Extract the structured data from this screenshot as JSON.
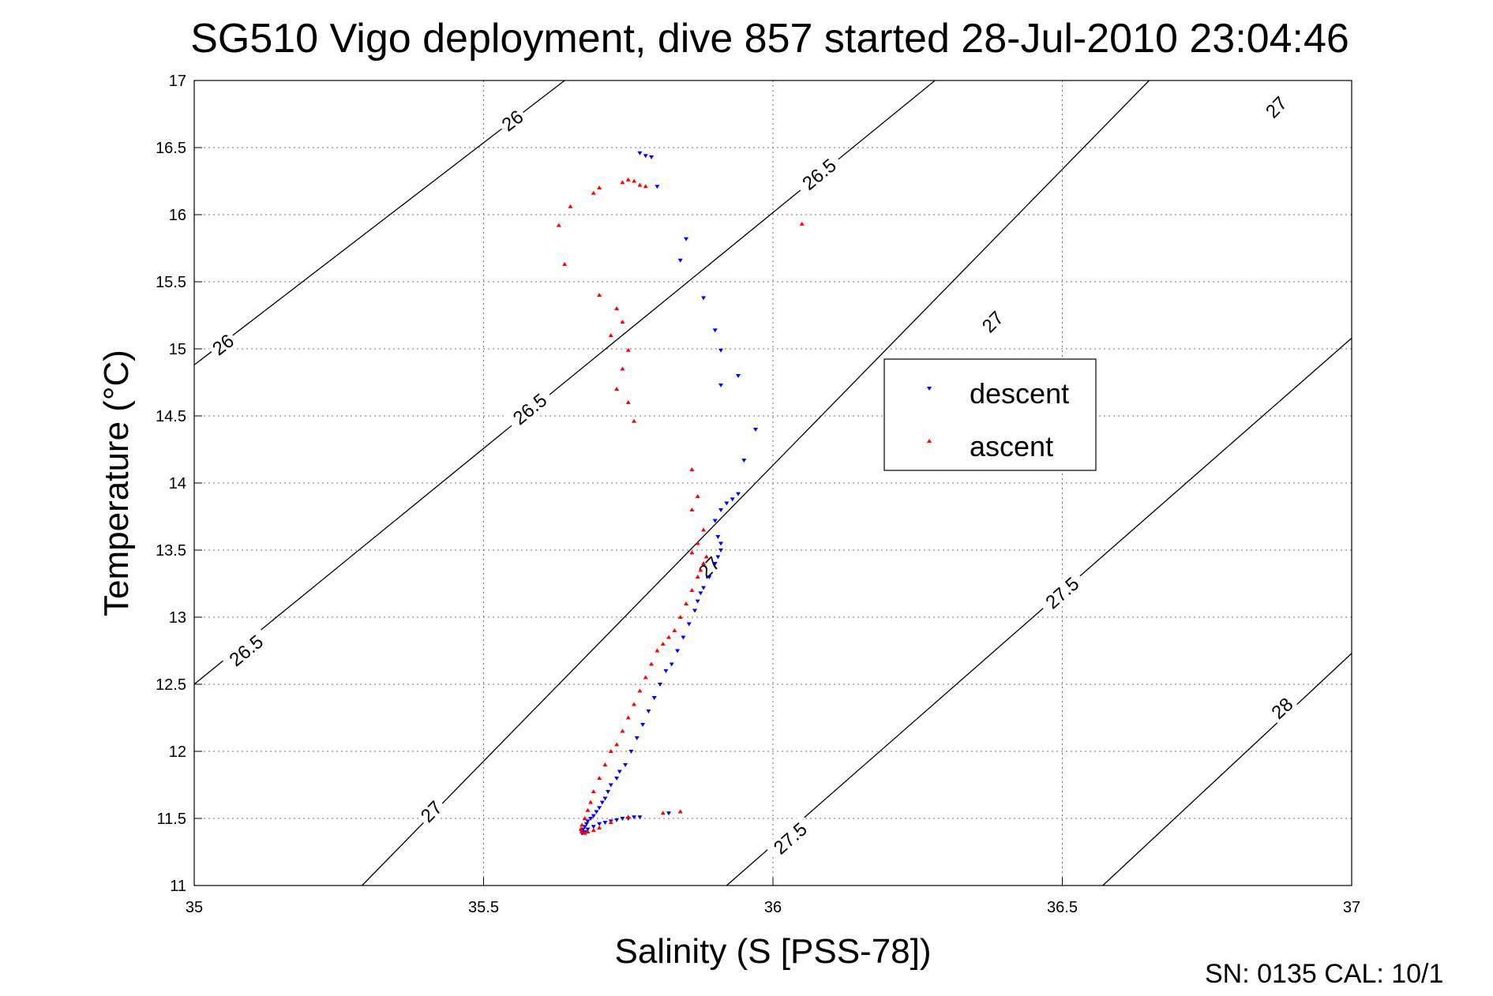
{
  "chart_data": {
    "type": "scatter",
    "title": "SG510 Vigo deployment, dive 857 started 28-Jul-2010 23:04:46",
    "xlabel": "Salinity (S [PSS-78])",
    "ylabel": "Temperature (°C)",
    "xlim": [
      35,
      37
    ],
    "ylim": [
      11,
      17
    ],
    "xticks": [
      "35",
      "35.5",
      "36",
      "36.5",
      "37"
    ],
    "yticks": [
      "11",
      "11.5",
      "12",
      "12.5",
      "13",
      "13.5",
      "14",
      "14.5",
      "15",
      "15.5",
      "16",
      "16.5",
      "17"
    ],
    "grid": true,
    "legend_position": "right-center",
    "footer": "SN: 0135  CAL: 10/1",
    "density_contours": [
      {
        "label": "26",
        "points": [
          [
            35.0,
            14.88
          ],
          [
            35.64,
            17.0
          ]
        ],
        "label_positions": [
          [
            35.05,
            15.03
          ],
          [
            35.55,
            16.7
          ]
        ]
      },
      {
        "label": "26.5",
        "points": [
          [
            35.0,
            12.5
          ],
          [
            36.28,
            17.0
          ]
        ],
        "label_positions": [
          [
            35.09,
            12.75
          ],
          [
            35.58,
            14.55
          ],
          [
            36.08,
            16.3
          ]
        ]
      },
      {
        "label": "27",
        "points": [
          [
            35.29,
            11.0
          ],
          [
            36.65,
            17.0
          ]
        ],
        "label_positions": [
          [
            35.41,
            11.55
          ],
          [
            35.89,
            13.37
          ],
          [
            36.38,
            15.2
          ],
          [
            36.87,
            16.8
          ]
        ]
      },
      {
        "label": "27.5",
        "points": [
          [
            35.92,
            11.0
          ],
          [
            37.0,
            15.08
          ]
        ],
        "label_positions": [
          [
            36.03,
            11.35
          ],
          [
            36.5,
            13.18
          ]
        ]
      },
      {
        "label": "28",
        "points": [
          [
            36.57,
            11.0
          ],
          [
            37.0,
            12.73
          ]
        ],
        "label_positions": [
          [
            36.88,
            12.32
          ]
        ]
      }
    ],
    "series": [
      {
        "name": "descent",
        "color": "#0000ff",
        "marker": "triangle-down",
        "x": [
          35.77,
          35.78,
          35.79,
          35.8,
          35.85,
          35.84,
          35.88,
          35.9,
          35.91,
          35.94,
          35.91,
          35.97,
          35.95,
          35.94,
          35.93,
          35.92,
          35.91,
          35.9,
          35.905,
          35.91,
          35.91,
          35.905,
          35.9,
          35.89,
          35.88,
          35.875,
          35.87,
          35.865,
          35.855,
          35.845,
          35.835,
          35.825,
          35.815,
          35.805,
          35.795,
          35.785,
          35.775,
          35.765,
          35.755,
          35.745,
          35.735,
          35.73,
          35.72,
          35.715,
          35.71,
          35.705,
          35.7,
          35.695,
          35.69,
          35.685,
          35.68,
          35.678,
          35.675,
          35.672,
          35.67,
          35.67,
          35.675,
          35.68,
          35.69,
          35.7,
          35.71,
          35.72,
          35.73,
          35.74,
          35.75,
          35.76,
          35.77,
          35.82
        ],
        "y": [
          16.46,
          16.44,
          16.43,
          16.21,
          15.82,
          15.66,
          15.38,
          15.14,
          14.99,
          14.8,
          14.73,
          14.4,
          14.17,
          13.92,
          13.88,
          13.85,
          13.8,
          13.72,
          13.6,
          13.55,
          13.5,
          13.45,
          13.4,
          13.3,
          13.22,
          13.18,
          13.12,
          13.05,
          12.95,
          12.85,
          12.75,
          12.65,
          12.6,
          12.5,
          12.4,
          12.3,
          12.2,
          12.1,
          12.0,
          11.9,
          11.85,
          11.8,
          11.75,
          11.7,
          11.65,
          11.62,
          11.58,
          11.55,
          11.52,
          11.5,
          11.48,
          11.46,
          11.44,
          11.42,
          11.4,
          11.39,
          11.4,
          11.42,
          11.44,
          11.46,
          11.47,
          11.48,
          11.49,
          11.5,
          11.5,
          11.51,
          11.51,
          11.54
        ]
      },
      {
        "name": "ascent",
        "color": "#ff0000",
        "marker": "triangle-up",
        "x": [
          36.05,
          35.64,
          35.63,
          35.65,
          35.69,
          35.7,
          35.74,
          35.75,
          35.76,
          35.77,
          35.78,
          35.7,
          35.73,
          35.74,
          35.72,
          35.75,
          35.74,
          35.73,
          35.75,
          35.76,
          35.86,
          35.87,
          35.86,
          35.88,
          35.87,
          35.86,
          35.885,
          35.88,
          35.875,
          35.87,
          35.86,
          35.85,
          35.84,
          35.83,
          35.82,
          35.81,
          35.8,
          35.79,
          35.78,
          35.77,
          35.76,
          35.75,
          35.74,
          35.73,
          35.72,
          35.71,
          35.7,
          35.69,
          35.685,
          35.68,
          35.675,
          35.67,
          35.668,
          35.67,
          35.675,
          35.68,
          35.69,
          35.7,
          35.72,
          35.75,
          35.81,
          35.84
        ],
        "y": [
          15.93,
          15.63,
          15.92,
          16.06,
          16.16,
          16.2,
          16.24,
          16.26,
          16.25,
          16.22,
          16.21,
          15.4,
          15.3,
          15.2,
          15.1,
          14.99,
          14.85,
          14.7,
          14.6,
          14.46,
          14.1,
          13.9,
          13.8,
          13.65,
          13.55,
          13.48,
          13.45,
          13.4,
          13.35,
          13.3,
          13.2,
          13.1,
          13.0,
          12.9,
          12.85,
          12.8,
          12.75,
          12.65,
          12.55,
          12.45,
          12.35,
          12.25,
          12.15,
          12.05,
          12.0,
          11.9,
          11.8,
          11.7,
          11.62,
          11.56,
          11.5,
          11.45,
          11.42,
          11.4,
          11.39,
          11.4,
          11.41,
          11.43,
          11.47,
          11.51,
          11.54,
          11.55
        ]
      }
    ]
  }
}
